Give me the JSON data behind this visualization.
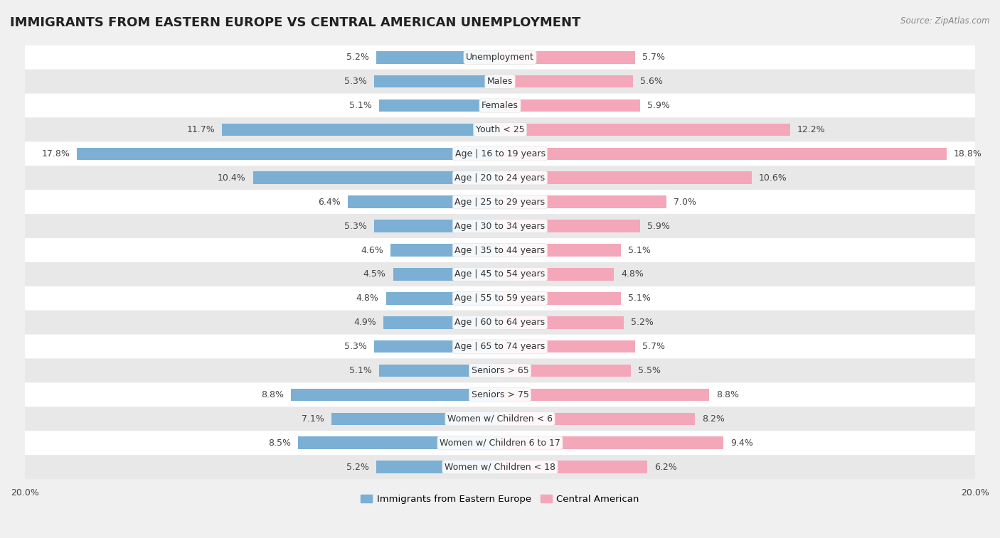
{
  "title": "IMMIGRANTS FROM EASTERN EUROPE VS CENTRAL AMERICAN UNEMPLOYMENT",
  "source": "Source: ZipAtlas.com",
  "categories": [
    "Unemployment",
    "Males",
    "Females",
    "Youth < 25",
    "Age | 16 to 19 years",
    "Age | 20 to 24 years",
    "Age | 25 to 29 years",
    "Age | 30 to 34 years",
    "Age | 35 to 44 years",
    "Age | 45 to 54 years",
    "Age | 55 to 59 years",
    "Age | 60 to 64 years",
    "Age | 65 to 74 years",
    "Seniors > 65",
    "Seniors > 75",
    "Women w/ Children < 6",
    "Women w/ Children 6 to 17",
    "Women w/ Children < 18"
  ],
  "eastern_europe": [
    5.2,
    5.3,
    5.1,
    11.7,
    17.8,
    10.4,
    6.4,
    5.3,
    4.6,
    4.5,
    4.8,
    4.9,
    5.3,
    5.1,
    8.8,
    7.1,
    8.5,
    5.2
  ],
  "central_american": [
    5.7,
    5.6,
    5.9,
    12.2,
    18.8,
    10.6,
    7.0,
    5.9,
    5.1,
    4.8,
    5.1,
    5.2,
    5.7,
    5.5,
    8.8,
    8.2,
    9.4,
    6.2
  ],
  "eastern_europe_color": "#7bafd4",
  "central_american_color": "#f4a7b9",
  "background_color": "#f0f0f0",
  "row_colors_even": "#ffffff",
  "row_colors_odd": "#e8e8e8",
  "max_value": 20.0,
  "title_fontsize": 13,
  "label_fontsize": 9,
  "value_fontsize": 9,
  "legend_label_ee": "Immigrants from Eastern Europe",
  "legend_label_ca": "Central American"
}
